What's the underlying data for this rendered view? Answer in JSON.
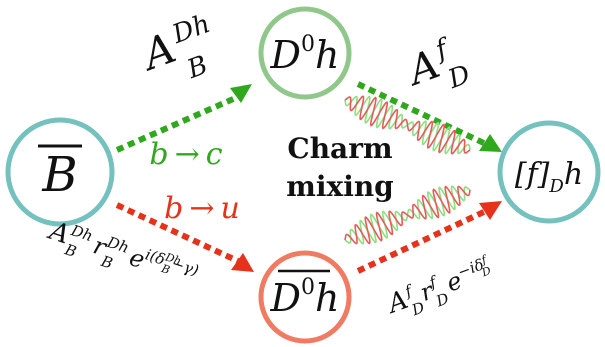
{
  "nodes": {
    "b_bar": {
      "label": "B",
      "color": "#74c1bd"
    },
    "d0h": {
      "label_main": "D",
      "label_sup": "0",
      "label_after": "h",
      "color": "#8fc88a"
    },
    "d0bar_h": {
      "label_main": "D",
      "label_sup": "0",
      "label_after": "h",
      "color": "#ef7b63"
    },
    "fh": {
      "label_open": "[f]",
      "label_sub": "D",
      "label_after": "h",
      "color": "#74c1bd"
    }
  },
  "center_text": {
    "line1": "Charm",
    "line2": "mixing"
  },
  "transitions": {
    "b_to_c": {
      "b": "b",
      "arrow": "→",
      "c": "c",
      "color": "#2fa81d"
    },
    "b_to_u": {
      "b": "b",
      "arrow": "→",
      "u": "u",
      "color": "#e5331b"
    }
  },
  "amplitudes": {
    "a_b": {
      "main": "A",
      "sup": "Dh",
      "sub": "B"
    },
    "a_d": {
      "main": "A",
      "sup": "f",
      "sub": "D"
    },
    "a_b_full": {
      "main": "A",
      "sup1": "Dh",
      "sub1": "B",
      "r": "r",
      "sup2": "Dh",
      "sub2": "B",
      "exp": "e",
      "phase": "i(δ",
      "phase_sup": "Dh",
      "phase_sub": "B",
      "phase_end": "−γ)"
    },
    "a_d_full": {
      "main": "A",
      "sup1": "f",
      "sub1": "D",
      "r": "r",
      "sup2": "f",
      "sub2": "D",
      "exp": "e",
      "phase": "−iδ",
      "phase_sup": "f",
      "phase_sub": "D"
    }
  },
  "colors": {
    "green_arrow": "#2fa81d",
    "red_arrow": "#e5331b",
    "green_wave": "#8be07f",
    "red_wave": "#e85a5a"
  }
}
